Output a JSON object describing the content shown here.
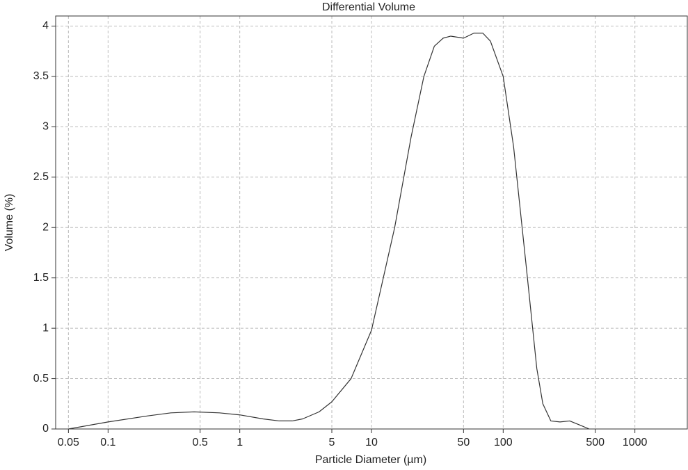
{
  "chart_data": {
    "type": "line",
    "title": "Differential Volume",
    "x_label": "Particle Diameter (µm)",
    "y_label": "Volume (%)",
    "x_scale": "log",
    "grid": true,
    "xlim": [
      0.04,
      2500
    ],
    "xticks": [
      0.05,
      0.1,
      0.5,
      1,
      5,
      10,
      50,
      100,
      500,
      1000
    ],
    "ylim": [
      0,
      4.1
    ],
    "yticks": [
      0,
      0.5,
      1,
      1.5,
      2,
      2.5,
      3,
      3.5,
      4
    ],
    "x": [
      0.05,
      0.1,
      0.2,
      0.3,
      0.45,
      0.7,
      1,
      1.5,
      2,
      2.5,
      3,
      4,
      5,
      7,
      10,
      15,
      20,
      25,
      30,
      35,
      40,
      50,
      60,
      70,
      80,
      100,
      120,
      150,
      180,
      200,
      230,
      270,
      320,
      380,
      450
    ],
    "series": [
      {
        "color": "#333333",
        "values": [
          0,
          0.07,
          0.13,
          0.16,
          0.17,
          0.16,
          0.14,
          0.1,
          0.08,
          0.08,
          0.1,
          0.17,
          0.27,
          0.5,
          0.98,
          2.0,
          2.9,
          3.5,
          3.8,
          3.88,
          3.9,
          3.88,
          3.93,
          3.93,
          3.85,
          3.5,
          2.8,
          1.6,
          0.6,
          0.25,
          0.08,
          0.07,
          0.08,
          0.04,
          0
        ]
      }
    ]
  }
}
